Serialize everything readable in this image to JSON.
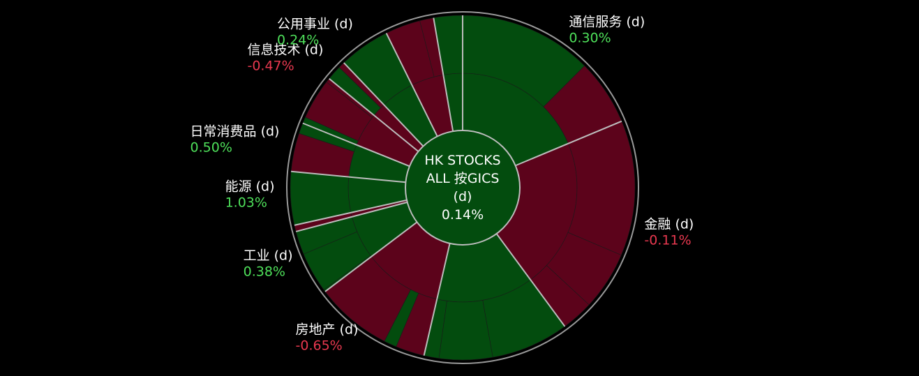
{
  "chart_data": {
    "type": "sunburst",
    "center": {
      "lines": [
        "HK STOCKS",
        "ALL 按GICS",
        "(d)",
        "0.14%"
      ],
      "value": 0.14
    },
    "colors": {
      "up": "#034c0e",
      "down": "#5c031b",
      "up_text": "#4ee05a",
      "down_text": "#e8384f",
      "divider": "#bdbdbd"
    },
    "sectors": [
      {
        "name": "通信服务 (d)",
        "pct": "0.30%",
        "value": 0.3,
        "weight": 18.7,
        "subs": [
          {
            "w": 12.5,
            "up": true
          },
          {
            "w": 6.2,
            "up": false
          }
        ]
      },
      {
        "name": "金融 (d)",
        "pct": "-0.11%",
        "value": -0.11,
        "weight": 21.2,
        "subs": [
          {
            "w": 12.7,
            "up": false
          },
          {
            "w": 5.5,
            "up": false
          },
          {
            "w": 3.0,
            "up": false
          }
        ]
      },
      {
        "name": "",
        "pct": "",
        "value": 0.4,
        "weight": 13.7,
        "subs": [
          {
            "w": 7.3,
            "up": true
          },
          {
            "w": 5.0,
            "up": true
          },
          {
            "w": 1.4,
            "up": true
          }
        ]
      },
      {
        "name": "房地产 (d)",
        "pct": "-0.65%",
        "value": -0.65,
        "weight": 11.1,
        "subs": [
          {
            "w": 2.7,
            "up": false
          },
          {
            "w": 1.2,
            "up": true
          },
          {
            "w": 7.2,
            "up": false
          }
        ]
      },
      {
        "name": "工业 (d)",
        "pct": "0.38%",
        "value": 0.38,
        "weight": 6.2,
        "subs": [
          {
            "w": 0.2,
            "up": true
          },
          {
            "w": 3.8,
            "up": true
          },
          {
            "w": 2.2,
            "up": true
          }
        ]
      },
      {
        "name": "",
        "pct": "",
        "value": -0.3,
        "weight": 0.6,
        "subs": [
          {
            "w": 0.6,
            "up": false
          }
        ]
      },
      {
        "name": "能源 (d)",
        "pct": "1.03%",
        "value": 1.03,
        "weight": 5.0,
        "subs": [
          {
            "w": 5.0,
            "up": true
          }
        ]
      },
      {
        "name": "日常消费品 (d)",
        "pct": "0.50%",
        "value": 0.5,
        "weight": 4.6,
        "subs": [
          {
            "w": 3.6,
            "up": false
          },
          {
            "w": 1.0,
            "up": true
          }
        ]
      },
      {
        "name": "",
        "pct": "",
        "value": -0.2,
        "weight": 4.8,
        "subs": [
          {
            "w": 0.6,
            "up": true
          },
          {
            "w": 3.8,
            "up": false
          },
          {
            "w": 0.4,
            "up": false
          }
        ]
      },
      {
        "name": "信息技术 (d)",
        "pct": "-0.47%",
        "value": -0.47,
        "weight": 2.0,
        "subs": [
          {
            "w": 1.4,
            "up": true
          },
          {
            "w": 0.6,
            "up": false
          }
        ]
      },
      {
        "name": "公用事业 (d)",
        "pct": "0.24%",
        "value": 0.24,
        "weight": 4.8,
        "subs": [
          {
            "w": 4.8,
            "up": true
          }
        ]
      },
      {
        "name": "",
        "pct": "",
        "value": -0.3,
        "weight": 4.6,
        "subs": [
          {
            "w": 3.3,
            "up": false
          },
          {
            "w": 1.3,
            "up": false
          }
        ]
      },
      {
        "name": "",
        "pct": "",
        "value": 0.2,
        "weight": 2.7,
        "subs": [
          {
            "w": 2.7,
            "up": true
          }
        ]
      }
    ]
  }
}
